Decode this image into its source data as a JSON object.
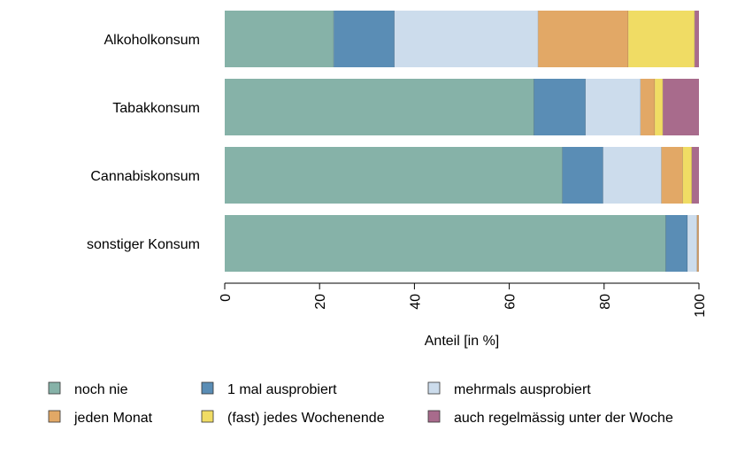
{
  "chart_data": {
    "type": "bar",
    "orientation": "horizontal",
    "stacked": true,
    "xlabel": "Anteil [in %]",
    "xlim": [
      0,
      100
    ],
    "xticks": [
      "0",
      "20",
      "40",
      "60",
      "80",
      "100"
    ],
    "grid": false,
    "legend_position": "bottom",
    "categories": [
      "Alkoholkonsum",
      "Tabakkonsum",
      "Cannabiskonsum",
      "sonstiger Konsum"
    ],
    "series": [
      {
        "name": "noch nie",
        "color": "#86b2a8",
        "values": [
          23,
          65.2,
          71.2,
          93
        ]
      },
      {
        "name": "1 mal ausprobiert",
        "color": "#5a8db5",
        "values": [
          12.8,
          10.9,
          8.6,
          4.6
        ]
      },
      {
        "name": "mehrmals ausprobiert",
        "color": "#ccdcec",
        "values": [
          30.3,
          11.6,
          12.3,
          2
        ]
      },
      {
        "name": "jeden Monat",
        "color": "#e2a866",
        "values": [
          19,
          3,
          4.5,
          0.2
        ]
      },
      {
        "name": "(fast) jedes Wochenende",
        "color": "#f0dc64",
        "values": [
          14,
          1.7,
          1.9,
          0.1
        ]
      },
      {
        "name": "auch regelmässig unter der Woche",
        "color": "#a86b8c",
        "values": [
          0.9,
          7.6,
          1.5,
          0.1
        ]
      }
    ]
  }
}
